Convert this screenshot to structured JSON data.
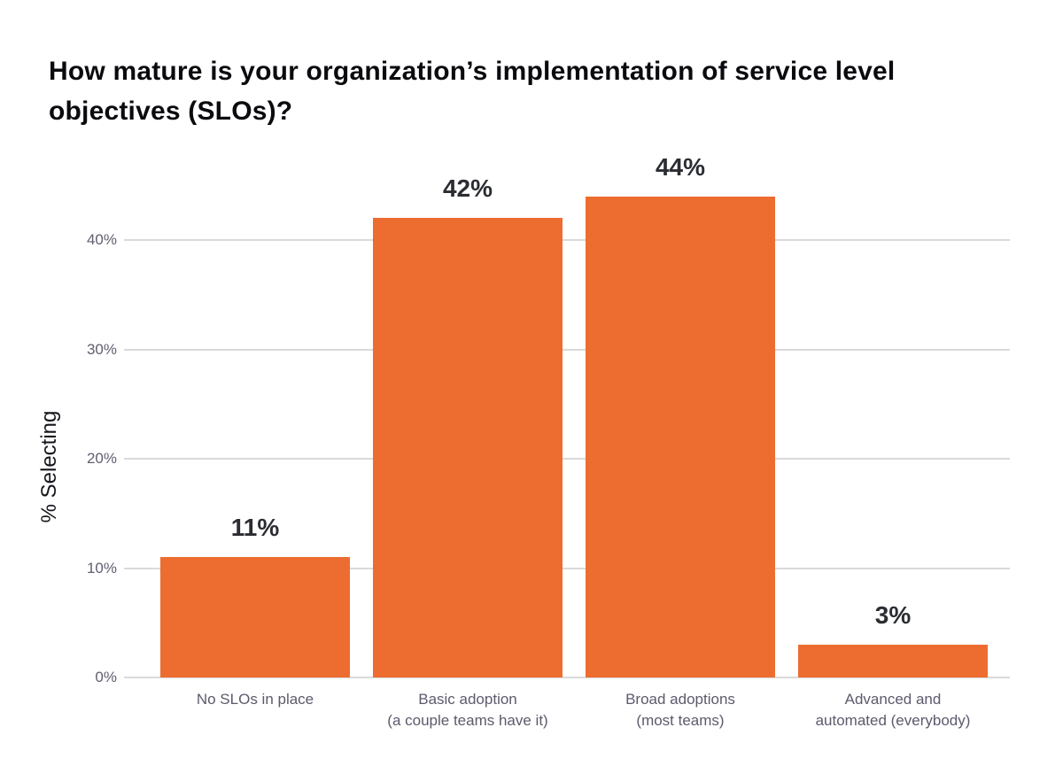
{
  "chart_data": {
    "type": "bar",
    "title": "How mature is your organization’s implementation of service level objectives (SLOs)?",
    "xlabel": "",
    "ylabel": "% Selecting",
    "categories": [
      "No SLOs in place",
      "Basic adoption (a couple teams have it)",
      "Broad adoptions (most teams)",
      "Advanced and automated (everybody)"
    ],
    "category_lines": [
      [
        "No SLOs in place"
      ],
      [
        "Basic adoption",
        "(a couple teams have it)"
      ],
      [
        "Broad adoptions",
        "(most teams)"
      ],
      [
        "Advanced and",
        "automated (everybody)"
      ]
    ],
    "values": [
      11,
      42,
      44,
      3
    ],
    "value_labels": [
      "11%",
      "42%",
      "44%",
      "3%"
    ],
    "yticks": [
      0,
      10,
      20,
      30,
      40
    ],
    "ytick_labels": [
      "0%",
      "10%",
      "20%",
      "30%",
      "40%"
    ],
    "ylim": [
      0,
      45
    ],
    "grid": "horizontal-only",
    "legend": "none",
    "colors": {
      "bar": "#ED6C30",
      "gridline": "#DADADA",
      "tick_label": "#605E71",
      "category_label": "#5C5A6C",
      "value_label": "#2B2D33",
      "title": "#0B0B0F",
      "axis_title": "#15151C",
      "background": "#FFFFFF"
    }
  }
}
